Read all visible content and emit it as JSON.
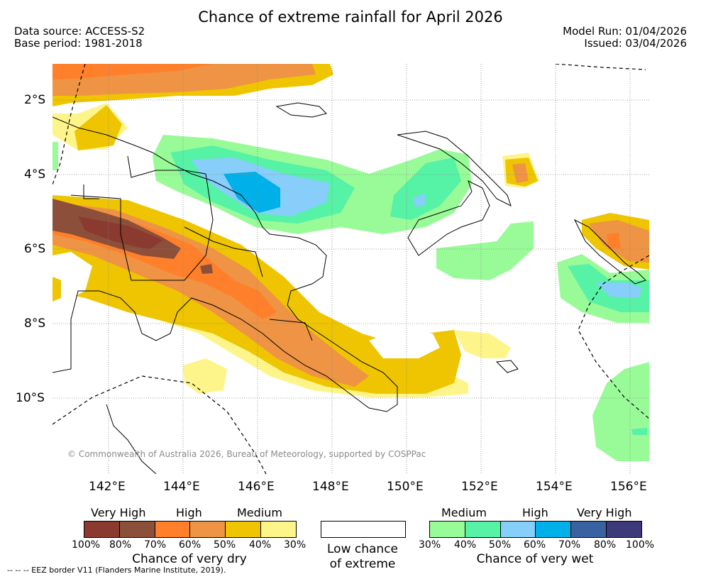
{
  "header": {
    "title": "Chance of extreme rainfall for April 2026",
    "data_source": "Data source: ACCESS-S2",
    "base_period": "Base period: 1981-2018",
    "model_run": "Model Run: 01/04/2026",
    "issued": "Issued: 03/04/2026"
  },
  "map": {
    "lat_ticks": [
      "2°S",
      "4°S",
      "6°S",
      "8°S",
      "10°S"
    ],
    "lon_ticks": [
      "142°E",
      "144°E",
      "146°E",
      "148°E",
      "150°E",
      "152°E",
      "154°E",
      "156°E"
    ],
    "copyright": "© Commonwealth of Australia 2026, Bureau of Meteorology, supported by COSPPac"
  },
  "legend": {
    "dry": {
      "levels": [
        "Very High",
        "High",
        "Medium"
      ],
      "percents": [
        "100%",
        "80%",
        "70%",
        "60%",
        "50%",
        "40%",
        "30%"
      ],
      "colors": [
        "#8b3a2f",
        "#8b4f3a",
        "#ff7f2a",
        "#ee9444",
        "#eec500",
        "#fdf58a"
      ],
      "title": "Chance of very dry"
    },
    "low": {
      "line1": "Low chance",
      "line2": "of extreme",
      "color": "#ffffff"
    },
    "wet": {
      "levels": [
        "Medium",
        "High",
        "Very High"
      ],
      "percents": [
        "30%",
        "40%",
        "50%",
        "60%",
        "70%",
        "80%",
        "100%"
      ],
      "colors": [
        "#98fb98",
        "#56f2a6",
        "#87cefa",
        "#00b0e8",
        "#3a62a0",
        "#3c3a78"
      ],
      "title": "Chance of very wet"
    }
  },
  "footer": {
    "eez_note": "--  --  -- EEZ border V11 (Flanders Marine Institute, 2019)."
  }
}
